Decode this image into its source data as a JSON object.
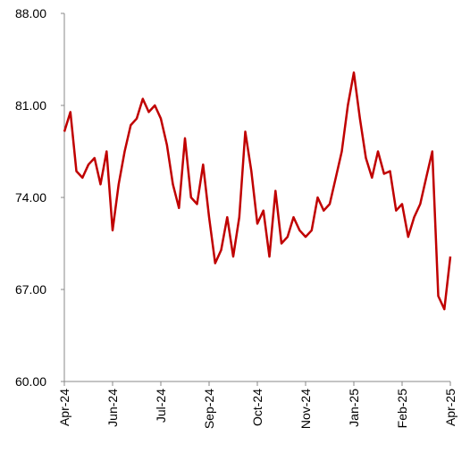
{
  "chart_data": {
    "type": "line",
    "categories": [
      "Apr-24",
      null,
      null,
      null,
      null,
      null,
      null,
      null,
      "Jun-24",
      null,
      null,
      null,
      null,
      null,
      null,
      null,
      "Jul-24",
      null,
      null,
      null,
      null,
      null,
      null,
      null,
      "Sep-24",
      null,
      null,
      null,
      null,
      null,
      null,
      null,
      "Oct-24",
      null,
      null,
      null,
      null,
      null,
      null,
      null,
      "Nov-24",
      null,
      null,
      null,
      null,
      null,
      null,
      null,
      "Jan-25",
      null,
      null,
      null,
      null,
      null,
      null,
      null,
      "Feb-25",
      null,
      null,
      null,
      null,
      null,
      null,
      null,
      "Apr-25"
    ],
    "series": [
      {
        "color": "#c00000",
        "values": [
          79,
          80.5,
          76,
          75.5,
          76.5,
          77,
          75,
          77.5,
          71.5,
          75,
          77.5,
          79.5,
          80,
          81.5,
          80.5,
          81,
          80,
          78,
          75,
          73.2,
          78.5,
          74,
          73.5,
          76.5,
          72.5,
          69,
          70,
          72.5,
          69.5,
          72.5,
          79,
          76,
          72,
          73,
          69.5,
          74.5,
          70.5,
          71,
          72.5,
          71.5,
          71,
          71.5,
          74,
          73,
          73.5,
          75.5,
          77.5,
          81,
          83.5,
          80,
          77,
          75.5,
          77.5,
          75.8,
          76,
          73,
          73.5,
          71,
          72.5,
          73.5,
          75.5,
          77.5,
          66.5,
          65.5,
          69.5
        ]
      }
    ],
    "ylim": [
      60,
      88
    ],
    "yticks": [
      {
        "value": 60,
        "label": "60.00"
      },
      {
        "value": 67,
        "label": "67.00"
      },
      {
        "value": 74,
        "label": "74.00"
      },
      {
        "value": 81,
        "label": "81.00"
      },
      {
        "value": 88,
        "label": "88.00"
      }
    ]
  }
}
